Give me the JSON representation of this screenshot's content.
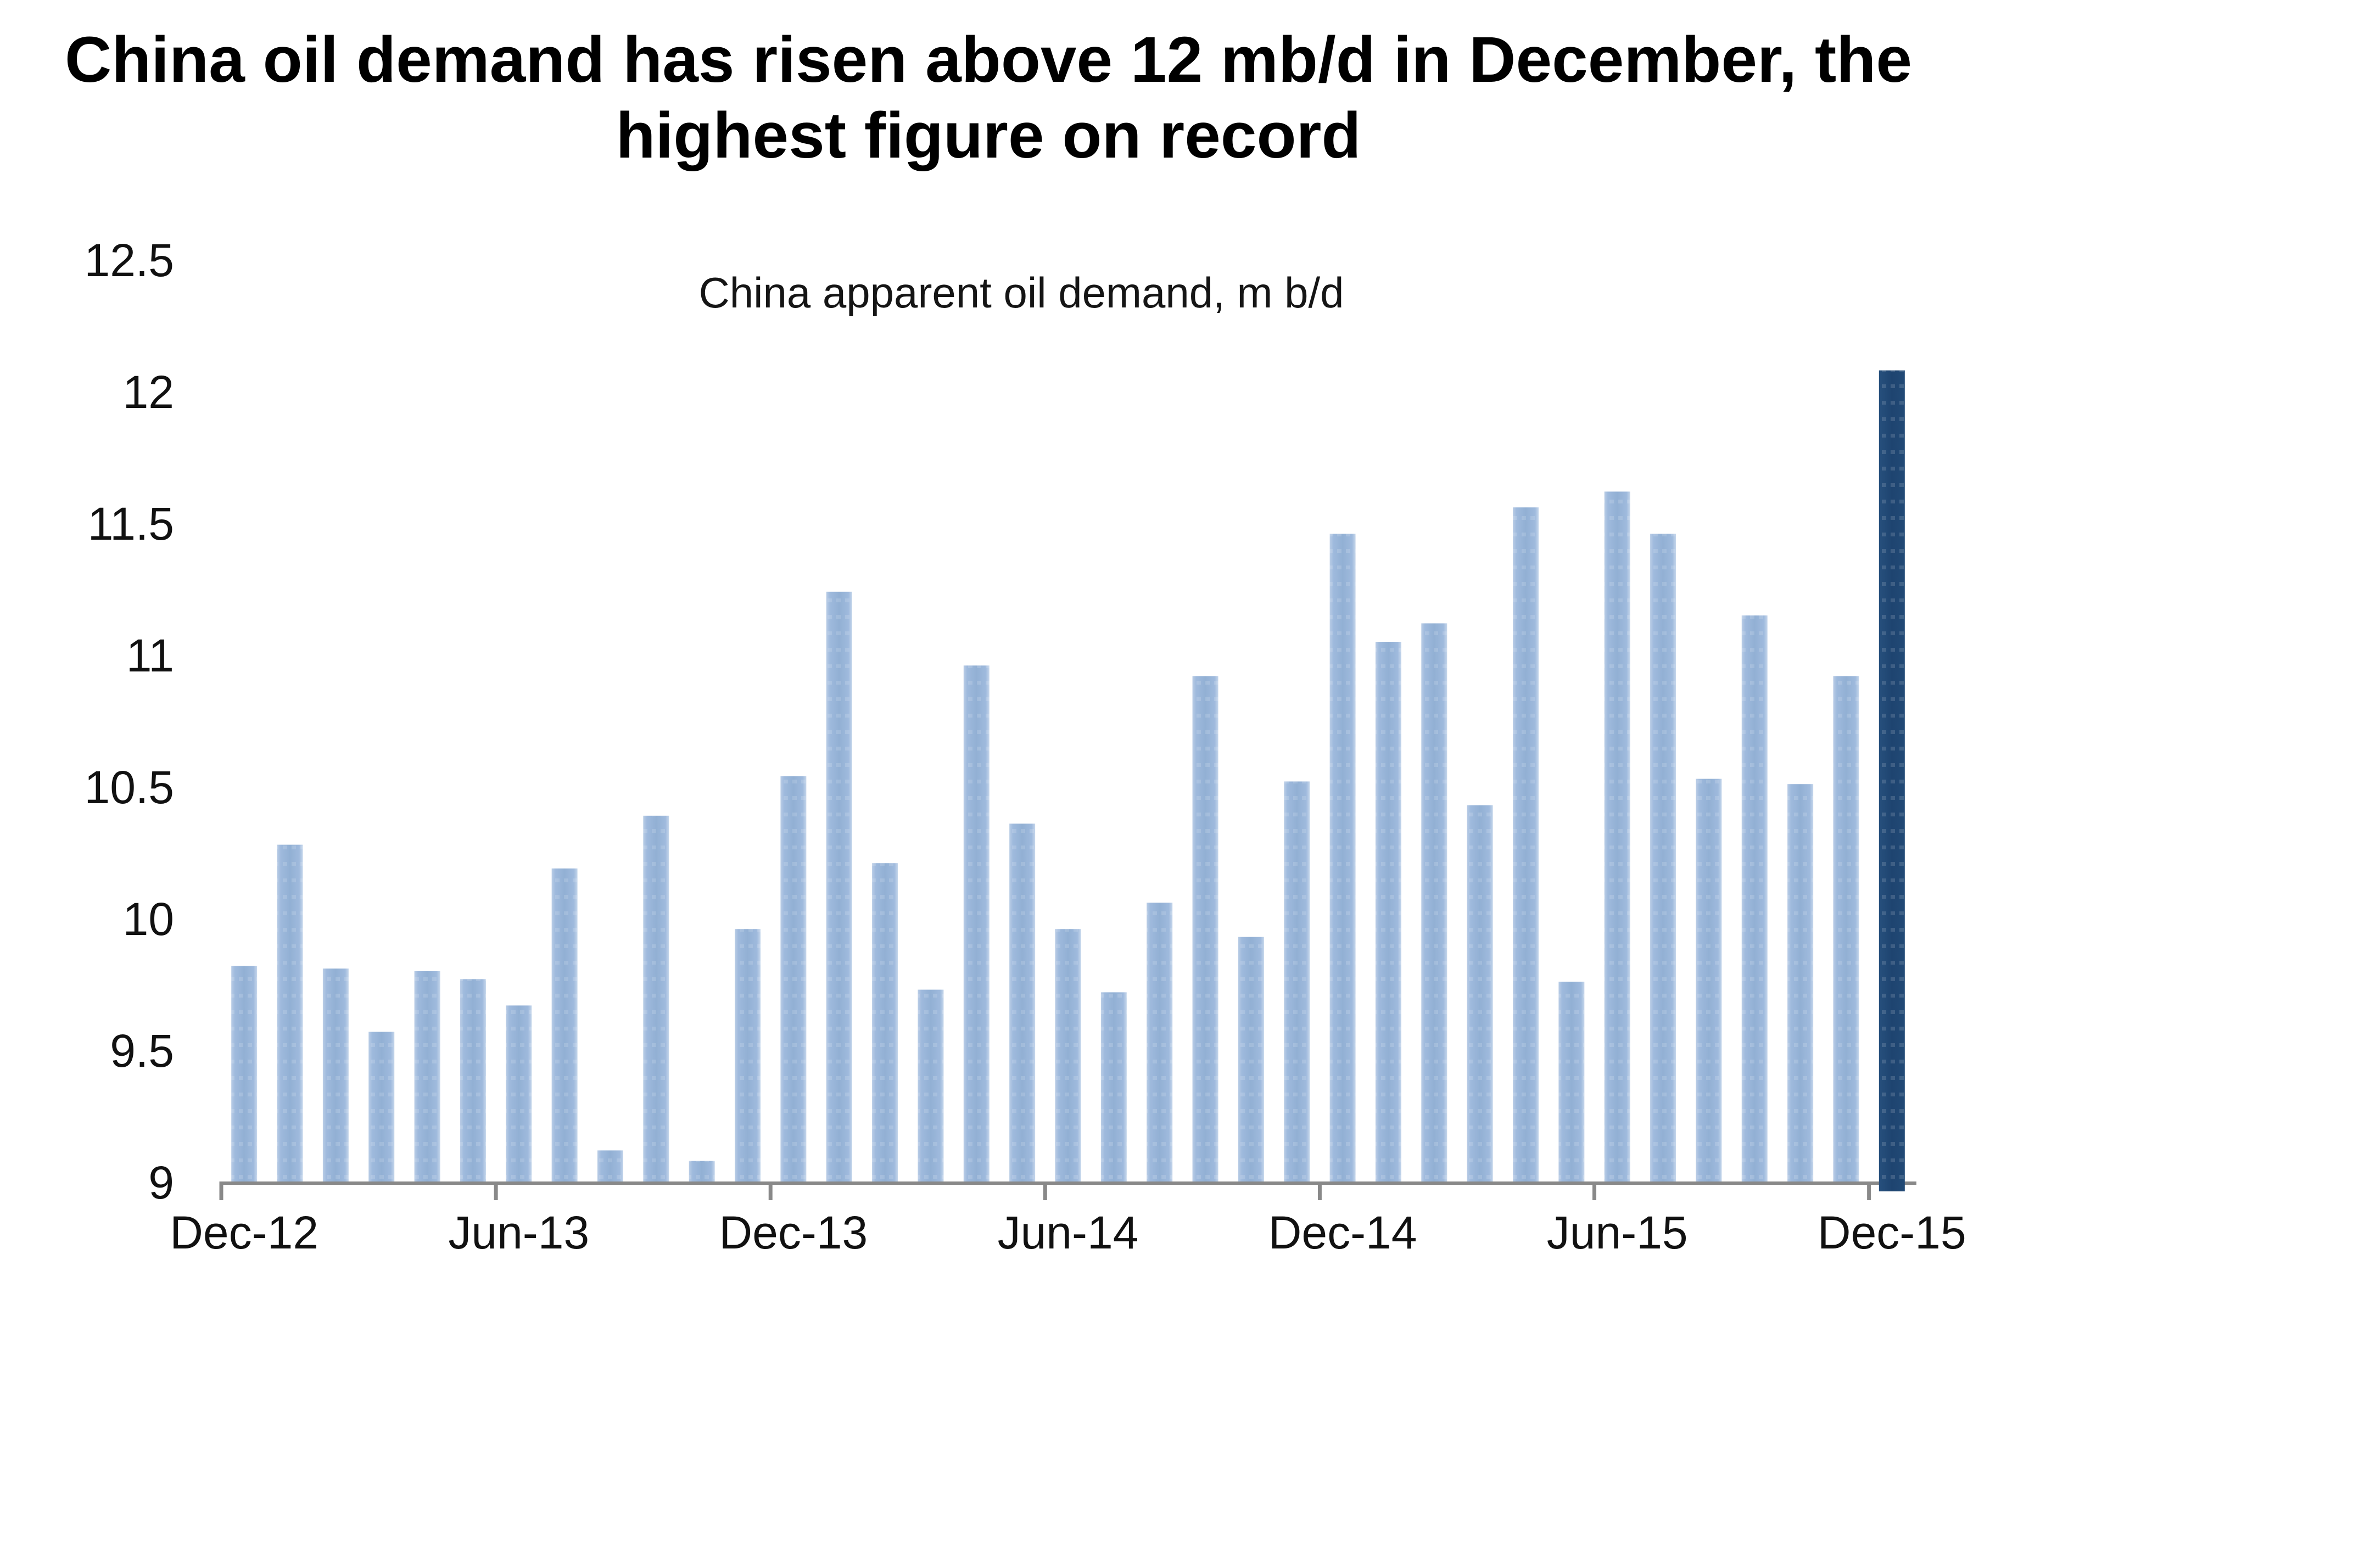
{
  "title_lines": [
    "China oil demand has risen above 12 mb/d in December, the",
    "highest figure on record"
  ],
  "chart_data": {
    "type": "bar",
    "title": "China oil demand has risen above 12 mb/d in December, the highest figure on record",
    "subtitle": "China apparent oil demand, m b/d",
    "xlabel": "",
    "ylabel": "",
    "grid": false,
    "legend": "none",
    "ylim": [
      9,
      12.5
    ],
    "yticks": [
      9,
      9.5,
      10,
      10.5,
      11,
      11.5,
      12,
      12.5
    ],
    "categories": [
      "Dec-12",
      "Jan-13",
      "Feb-13",
      "Mar-13",
      "Apr-13",
      "May-13",
      "Jun-13",
      "Jul-13",
      "Aug-13",
      "Sep-13",
      "Oct-13",
      "Nov-13",
      "Dec-13",
      "Jan-14",
      "Feb-14",
      "Mar-14",
      "Apr-14",
      "May-14",
      "Jun-14",
      "Jul-14",
      "Aug-14",
      "Sep-14",
      "Oct-14",
      "Nov-14",
      "Dec-14",
      "Jan-15",
      "Feb-15",
      "Mar-15",
      "Apr-15",
      "May-15",
      "Jun-15",
      "Jul-15",
      "Aug-15",
      "Sep-15",
      "Oct-15",
      "Nov-15",
      "Dec-15"
    ],
    "values": [
      9.82,
      10.28,
      9.81,
      9.57,
      9.8,
      9.77,
      9.67,
      10.19,
      9.12,
      10.39,
      9.08,
      9.96,
      10.54,
      11.24,
      10.21,
      9.73,
      10.96,
      10.36,
      9.96,
      9.72,
      10.06,
      10.92,
      9.93,
      10.52,
      11.46,
      11.05,
      11.12,
      10.43,
      11.56,
      9.76,
      11.62,
      11.46,
      10.53,
      11.15,
      10.51,
      10.92,
      12.08
    ],
    "highlight_index": 36,
    "xtick_shown": [
      "Dec-12",
      "Jun-13",
      "Dec-13",
      "Jun-14",
      "Dec-14",
      "Jun-15",
      "Dec-15"
    ],
    "xtick_interval_months": 6,
    "bar_color": "#95B1D5",
    "bar_gradient": [
      "#BACDE6",
      "#9FBADD",
      "#92B0D4",
      "#9FBADD",
      "#C5D6EB"
    ],
    "highlight_color": "#1F4571",
    "highlight_gradient": [
      "#27507D",
      "#1E4470",
      "#224A76"
    ],
    "axis_color": "#898989",
    "text_color": "#111111",
    "background_color": "#FFFFFF"
  }
}
